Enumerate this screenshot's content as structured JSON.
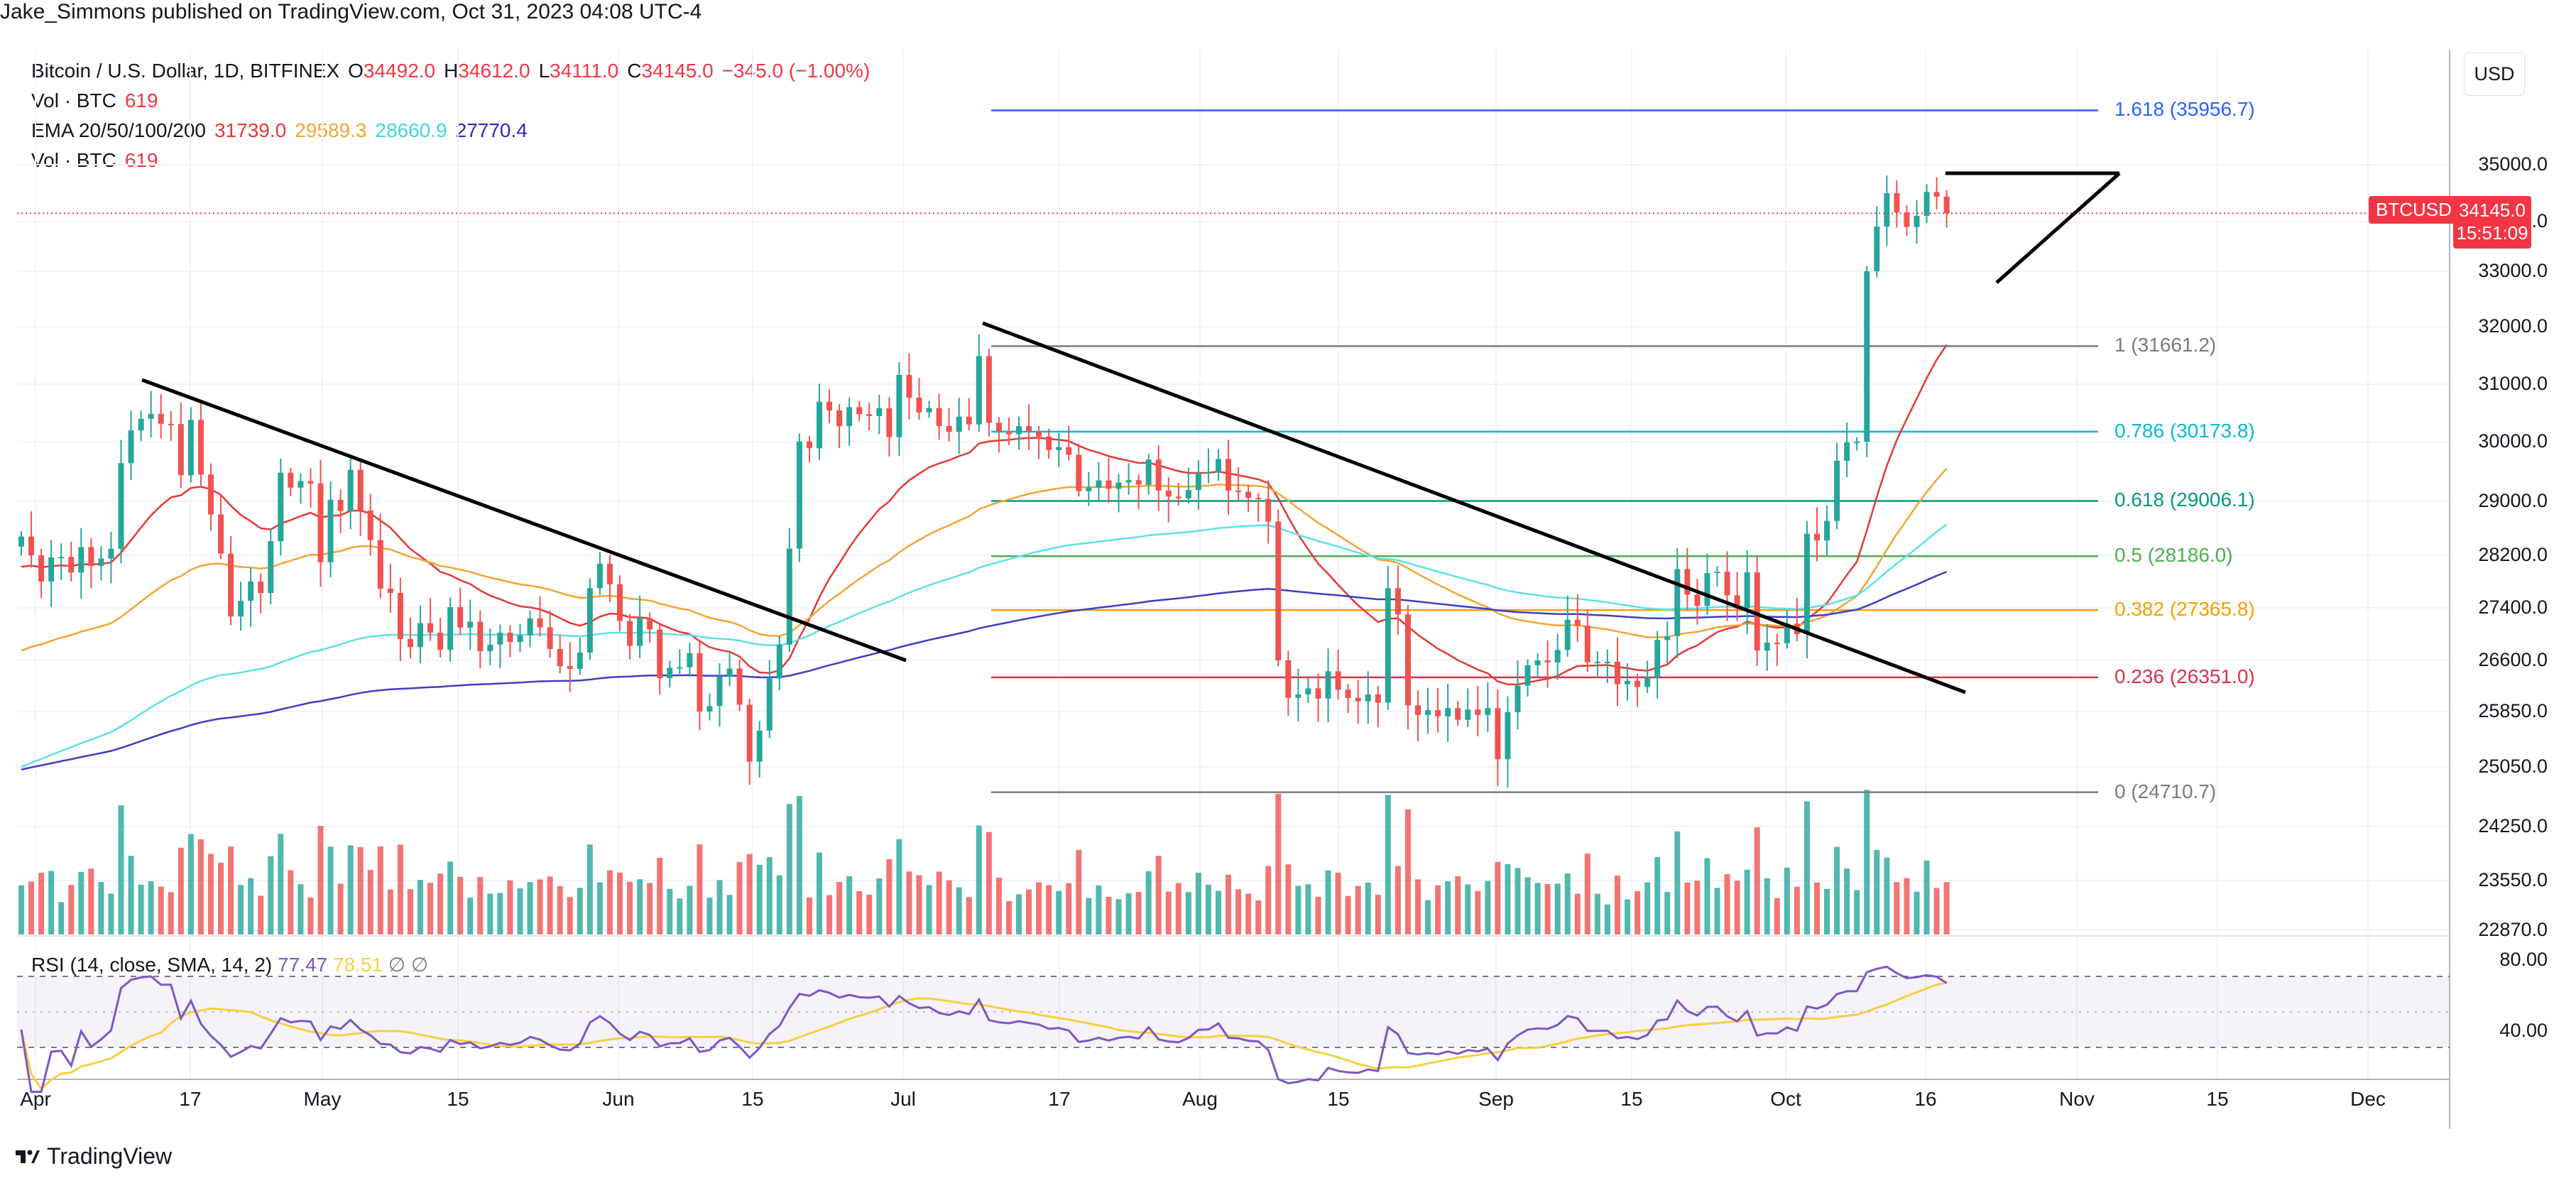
{
  "header": "Jake_Simmons published on TradingView.com, Oct 31, 2023 04:08 UTC-4",
  "legend": {
    "symbol": "Bitcoin / U.S. Dollar, 1D, BITFINEX",
    "o_label": "O",
    "o": "34492.0",
    "h_label": "H",
    "h": "34612.0",
    "l_label": "L",
    "l": "34111.0",
    "c_label": "C",
    "c": "34145.0",
    "change": "−345.0 (−1.00%)",
    "vol1_label": "Vol · BTC",
    "vol1": "619",
    "ema_label": "EMA 20/50/100/200",
    "ema20": "31739.0",
    "ema50": "29589.3",
    "ema100": "28660.9",
    "ema200": "27770.4",
    "vol2_label": "Vol · BTC",
    "vol2": "619"
  },
  "currency": "USD",
  "price_tag": {
    "symbol": "BTCUSD",
    "price": "34145.0",
    "countdown": "15:51:09"
  },
  "rsi": {
    "label": "RSI (14, close, SMA, 14, 2)",
    "value": "77.47",
    "sma": "78.51",
    "icons": [
      "∅",
      "∅"
    ],
    "ticks": [
      "80.00",
      "40.00"
    ]
  },
  "brand": "TradingView",
  "colors": {
    "up": "#26a69a",
    "down": "#ef5350",
    "ema20": "#e53935",
    "ema50": "#f5a433",
    "ema100": "#5ee0e6",
    "ema200": "#3f3fc0",
    "rsi": "#7e57c2",
    "rsi_sma": "#f5d142"
  },
  "chart_data": {
    "type": "candlestick",
    "x_ticks": [
      "Apr",
      "17",
      "May",
      "15",
      "Jun",
      "15",
      "Jul",
      "17",
      "Aug",
      "15",
      "Sep",
      "15",
      "Oct",
      "16",
      "Nov",
      "15",
      "Dec"
    ],
    "y_ticks": [
      "35000.0",
      "34000.0",
      "33000.0",
      "32000.0",
      "31000.0",
      "30000.0",
      "29000.0",
      "28200.0",
      "27400.0",
      "26600.0",
      "25850.0",
      "25050.0",
      "24250.0",
      "23550.0",
      "22870.0"
    ],
    "ylim": [
      22870,
      35800
    ],
    "fib_levels": [
      {
        "label": "1.618 (35956.7)",
        "value": 35956.7,
        "color": "#2962ff"
      },
      {
        "label": "1 (31661.2)",
        "value": 31661.2,
        "color": "#787b86"
      },
      {
        "label": "0.786 (30173.8)",
        "value": 30173.8,
        "color": "#00bcd4"
      },
      {
        "label": "0.618 (29006.1)",
        "value": 29006.1,
        "color": "#089981"
      },
      {
        "label": "0.5 (28186.0)",
        "value": 28186.0,
        "color": "#4caf50"
      },
      {
        "label": "0.382 (27365.8)",
        "value": 27365.8,
        "color": "#f5a000"
      },
      {
        "label": "0.236 (26351.0)",
        "value": 26351.0,
        "color": "#e0304a"
      },
      {
        "label": "0 (24710.7)",
        "value": 24710.7,
        "color": "#787b86"
      }
    ],
    "closes": [
      28478,
      28199,
      27800,
      28168,
      28176,
      27937,
      28322,
      28038,
      28150,
      28296,
      29640,
      30196,
      30398,
      30484,
      30311,
      30307,
      29437,
      30380,
      29451,
      28806,
      28225,
      27268,
      27507,
      27801,
      27626,
      28410,
      29480,
      29230,
      29340,
      29299,
      28094,
      29026,
      28855,
      29529,
      28864,
      28424,
      27693,
      27627,
      26925,
      26802,
      27167,
      27023,
      26760,
      27410,
      27100,
      27190,
      26740,
      26841,
      27021,
      26880,
      26980,
      27240,
      27103,
      26774,
      26516,
      26474,
      26720,
      27700,
      28072,
      27760,
      27200,
      26820,
      27245,
      27070,
      26340,
      26490,
      26500,
      26710,
      25850,
      25930,
      26360,
      26480,
      25950,
      25126,
      25575,
      26335,
      26840,
      28300,
      30004,
      29890,
      30695,
      30543,
      30270,
      30600,
      30478,
      30446,
      30580,
      30080,
      31160,
      30766,
      30509,
      30585,
      30272,
      30171,
      30435,
      30302,
      31488,
      30330,
      30185,
      30130,
      30270,
      30170,
      30090,
      29860,
      29910,
      29780,
      29170,
      29230,
      29350,
      29210,
      29315,
      29354,
      29280,
      29700,
      29180,
      29080,
      29050,
      29190,
      29480,
      29490,
      29710,
      29180,
      29160,
      29060,
      29040,
      28700,
      26600,
      26050,
      26100,
      26190,
      26040,
      26440,
      26170,
      26050,
      26000,
      26100,
      25980,
      27700,
      27300,
      25940,
      25800,
      25870,
      25780,
      25900,
      25730,
      25880,
      25800,
      25900,
      25160,
      25840,
      26230,
      26530,
      26600,
      26570,
      26760,
      27220,
      27130,
      26570,
      26580,
      26580,
      26250,
      26300,
      26210,
      26350,
      26910,
      26970,
      27990,
      27600,
      27430,
      27930,
      27950,
      27590,
      27390,
      27940,
      26750,
      26870,
      26860,
      27160,
      27000,
      28520,
      28420,
      28710,
      29680,
      29990,
      30000,
      33000,
      33900,
      34500,
      34160,
      33890,
      34100,
      34520,
      34440,
      34145
    ]
  }
}
